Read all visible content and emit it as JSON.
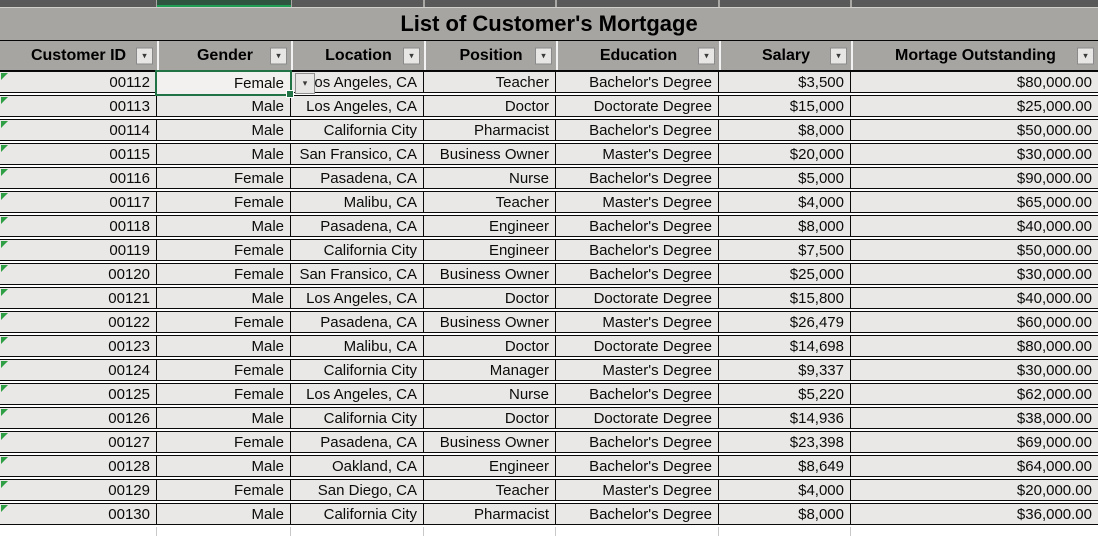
{
  "title": "List of Customer's Mortgage",
  "columns": [
    {
      "label": "Customer ID"
    },
    {
      "label": "Gender"
    },
    {
      "label": "Location"
    },
    {
      "label": "Position"
    },
    {
      "label": "Education"
    },
    {
      "label": "Salary"
    },
    {
      "label": "Mortage Outstanding"
    }
  ],
  "rows": [
    [
      "00112",
      "Female",
      "Los Angeles, CA",
      "Teacher",
      "Bachelor's Degree",
      "$3,500",
      "$80,000.00"
    ],
    [
      "00113",
      "Male",
      "Los Angeles, CA",
      "Doctor",
      "Doctorate Degree",
      "$15,000",
      "$25,000.00"
    ],
    [
      "00114",
      "Male",
      "California City",
      "Pharmacist",
      "Bachelor's Degree",
      "$8,000",
      "$50,000.00"
    ],
    [
      "00115",
      "Male",
      "San Fransico, CA",
      "Business Owner",
      "Master's Degree",
      "$20,000",
      "$30,000.00"
    ],
    [
      "00116",
      "Female",
      "Pasadena, CA",
      "Nurse",
      "Bachelor's Degree",
      "$5,000",
      "$90,000.00"
    ],
    [
      "00117",
      "Female",
      "Malibu, CA",
      "Teacher",
      "Master's Degree",
      "$4,000",
      "$65,000.00"
    ],
    [
      "00118",
      "Male",
      "Pasadena, CA",
      "Engineer",
      "Bachelor's Degree",
      "$8,000",
      "$40,000.00"
    ],
    [
      "00119",
      "Female",
      "California City",
      "Engineer",
      "Bachelor's Degree",
      "$7,500",
      "$50,000.00"
    ],
    [
      "00120",
      "Female",
      "San Fransico, CA",
      "Business Owner",
      "Bachelor's Degree",
      "$25,000",
      "$30,000.00"
    ],
    [
      "00121",
      "Male",
      "Los Angeles, CA",
      "Doctor",
      "Doctorate Degree",
      "$15,800",
      "$40,000.00"
    ],
    [
      "00122",
      "Female",
      "Pasadena, CA",
      "Business Owner",
      "Master's Degree",
      "$26,479",
      "$60,000.00"
    ],
    [
      "00123",
      "Male",
      "Malibu, CA",
      "Doctor",
      "Doctorate Degree",
      "$14,698",
      "$80,000.00"
    ],
    [
      "00124",
      "Female",
      "California City",
      "Manager",
      "Master's Degree",
      "$9,337",
      "$30,000.00"
    ],
    [
      "00125",
      "Female",
      "Los Angeles, CA",
      "Nurse",
      "Bachelor's Degree",
      "$5,220",
      "$62,000.00"
    ],
    [
      "00126",
      "Male",
      "California City",
      "Doctor",
      "Doctorate Degree",
      "$14,936",
      "$38,000.00"
    ],
    [
      "00127",
      "Female",
      "Pasadena, CA",
      "Business Owner",
      "Bachelor's Degree",
      "$23,398",
      "$69,000.00"
    ],
    [
      "00128",
      "Male",
      "Oakland, CA",
      "Engineer",
      "Bachelor's Degree",
      "$8,649",
      "$64,000.00"
    ],
    [
      "00129",
      "Female",
      "San Diego, CA",
      "Teacher",
      "Master's Degree",
      "$4,000",
      "$20,000.00"
    ],
    [
      "00130",
      "Male",
      "California City",
      "Pharmacist",
      "Bachelor's Degree",
      "$8,000",
      "$36,000.00"
    ]
  ],
  "selection": {
    "row": 0,
    "column": 1,
    "value": "Female",
    "has_validation_dropdown": true
  },
  "icons": {
    "filter_dropdown": "▾",
    "cell_dropdown": "▾"
  },
  "colors": {
    "header_bg": "#a7a5a2",
    "cell_bg": "#e9e8e6",
    "selected_cell_bg": "#f2f1ef",
    "selection_green": "#217346",
    "triangle_green": "#2f9e44",
    "strip_dark": "#595959",
    "strip_green": "#2f5440",
    "strip_green_line": "#1f9e54"
  }
}
